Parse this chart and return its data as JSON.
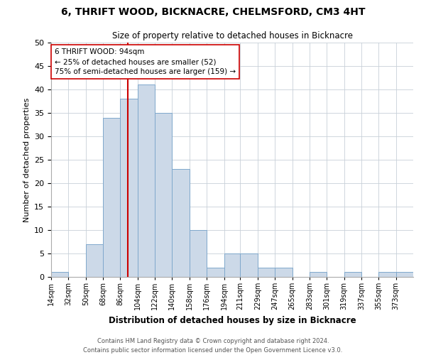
{
  "title": "6, THRIFT WOOD, BICKNACRE, CHELMSFORD, CM3 4HT",
  "subtitle": "Size of property relative to detached houses in Bicknacre",
  "xlabel": "Distribution of detached houses by size in Bicknacre",
  "ylabel": "Number of detached properties",
  "bar_color": "#ccd9e8",
  "bar_edge_color": "#7fa8cc",
  "bin_labels": [
    "14sqm",
    "32sqm",
    "50sqm",
    "68sqm",
    "86sqm",
    "104sqm",
    "122sqm",
    "140sqm",
    "158sqm",
    "176sqm",
    "194sqm",
    "211sqm",
    "229sqm",
    "247sqm",
    "265sqm",
    "283sqm",
    "301sqm",
    "319sqm",
    "337sqm",
    "355sqm",
    "373sqm"
  ],
  "bin_edges": [
    14,
    32,
    50,
    68,
    86,
    104,
    122,
    140,
    158,
    176,
    194,
    211,
    229,
    247,
    265,
    283,
    301,
    319,
    337,
    355,
    373,
    391
  ],
  "counts": [
    1,
    0,
    7,
    34,
    38,
    41,
    35,
    23,
    10,
    2,
    5,
    5,
    2,
    2,
    0,
    1,
    0,
    1,
    0,
    1,
    1
  ],
  "property_line_x": 94,
  "property_line_color": "#cc0000",
  "annotation_line1": "6 THRIFT WOOD: 94sqm",
  "annotation_line2": "← 25% of detached houses are smaller (52)",
  "annotation_line3": "75% of semi-detached houses are larger (159) →",
  "annotation_box_color": "#ffffff",
  "annotation_box_edge": "#cc0000",
  "ylim": [
    0,
    50
  ],
  "yticks": [
    0,
    5,
    10,
    15,
    20,
    25,
    30,
    35,
    40,
    45,
    50
  ],
  "footer_line1": "Contains HM Land Registry data © Crown copyright and database right 2024.",
  "footer_line2": "Contains public sector information licensed under the Open Government Licence v3.0.",
  "background_color": "#ffffff",
  "grid_color": "#c8d0d8"
}
